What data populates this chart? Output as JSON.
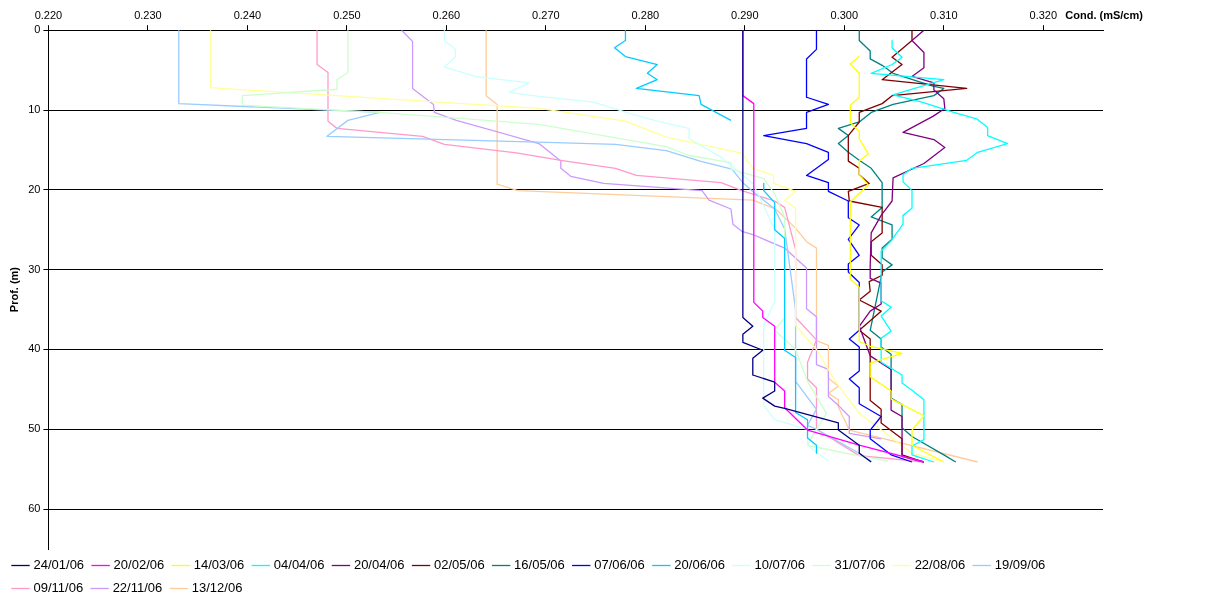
{
  "chart_data": {
    "type": "line",
    "xlabel": "Cond. (mS/cm)",
    "ylabel": "Prof. (m)",
    "xlim": [
      0.22,
      0.326
    ],
    "xticks": [
      {
        "value": 0.22,
        "label": "0.220"
      },
      {
        "value": 0.23,
        "label": "0.230"
      },
      {
        "value": 0.24,
        "label": "0.240"
      },
      {
        "value": 0.25,
        "label": "0.250"
      },
      {
        "value": 0.26,
        "label": "0.260"
      },
      {
        "value": 0.27,
        "label": "0.270"
      },
      {
        "value": 0.28,
        "label": "0.280"
      },
      {
        "value": 0.29,
        "label": "0.290"
      },
      {
        "value": 0.3,
        "label": "0.300"
      },
      {
        "value": 0.31,
        "label": "0.310"
      },
      {
        "value": 0.32,
        "label": "0.320"
      }
    ],
    "ylim": [
      65,
      0
    ],
    "yticks": [
      0,
      10,
      20,
      30,
      40,
      50,
      60
    ],
    "grid": "y",
    "legend": "bottom",
    "marker": "none",
    "line_style": "solid",
    "series": [
      {
        "name": "24/01/06",
        "color": "#000080",
        "x": [
          0.2898,
          0.2898,
          0.2908,
          0.2898,
          0.2898,
          0.2918,
          0.2908,
          0.2908,
          0.293,
          0.293,
          0.2918,
          0.293,
          0.2941,
          0.2994,
          0.2994,
          0.3015,
          0.3015,
          0.3027
        ],
        "values": [
          0,
          36,
          37.1,
          38.1,
          39.1,
          40.1,
          41.1,
          43.2,
          44.1,
          45.2,
          46.1,
          47.1,
          47.4,
          49.2,
          50.1,
          52,
          53,
          54.1
        ]
      },
      {
        "name": "20/02/06",
        "color": "#ff00ff",
        "x": [
          0.2898,
          0.2898,
          0.2909,
          0.2909,
          0.2918,
          0.2918,
          0.293,
          0.293,
          0.294,
          0.294,
          0.2963,
          0.3015,
          0.308
        ],
        "values": [
          0,
          8.2,
          9.2,
          34.1,
          35.2,
          36,
          37.1,
          44.1,
          45.2,
          47.3,
          50.1,
          52,
          54.1
        ]
      },
      {
        "name": "14/03/06",
        "color": "#ffff00",
        "x": [
          0.3015,
          0.3006,
          0.3015,
          0.3015,
          0.3006,
          0.3006,
          0.3015,
          0.3015,
          0.3024,
          0.3015,
          0.3015,
          0.3024,
          0.3006,
          0.3006,
          0.3015,
          0.3015,
          0.3026,
          0.3058,
          0.3026,
          0.3026,
          0.3047,
          0.3047,
          0.308,
          0.3068,
          0.3068,
          0.31
        ],
        "values": [
          3.3,
          4.2,
          5.4,
          8.4,
          9.4,
          11.6,
          12.7,
          13.6,
          15.5,
          16.4,
          18.1,
          19.4,
          21.5,
          31.2,
          32.2,
          39,
          39.6,
          40.5,
          41.7,
          43.4,
          45.2,
          46.2,
          48.3,
          50.1,
          52,
          54.1
        ]
      },
      {
        "name": "04/04/06",
        "color": "#00ffff",
        "x": [
          0.3048,
          0.3048,
          0.3058,
          0.3048,
          0.3027,
          0.31,
          0.3049,
          0.3078,
          0.311,
          0.3133,
          0.3144,
          0.3144,
          0.3164,
          0.3134,
          0.3123,
          0.3068,
          0.3059,
          0.3059,
          0.3068,
          0.3068,
          0.3059,
          0.3059,
          0.3047,
          0.3037,
          0.3037,
          0.3047,
          0.3037,
          0.3047,
          0.3037,
          0.3037,
          0.3058,
          0.3058,
          0.3068,
          0.308,
          0.308,
          0.3068,
          0.3068,
          0.309
        ],
        "values": [
          1.3,
          2.2,
          3.4,
          4.3,
          5.4,
          6.2,
          8.1,
          9,
          10.3,
          11.1,
          12.2,
          13.2,
          14.2,
          15.3,
          16.3,
          17.3,
          18.1,
          19,
          20.1,
          22.3,
          23.2,
          24.3,
          26.4,
          27.7,
          33.9,
          34.7,
          35.8,
          37.7,
          38.6,
          41.6,
          43.2,
          44.2,
          45.1,
          46.3,
          51.3,
          52.1,
          53.2,
          54.1
        ]
      },
      {
        "name": "20/04/06",
        "color": "#800080",
        "x": [
          0.308,
          0.3068,
          0.308,
          0.308,
          0.3068,
          0.309,
          0.309,
          0.31,
          0.3101,
          0.3089,
          0.3059,
          0.309,
          0.3101,
          0.308,
          0.3049,
          0.3048,
          0.3037,
          0.3027,
          0.3026,
          0.3026,
          0.3037,
          0.3037,
          0.3026,
          0.3015,
          0.3026,
          0.3047,
          0.3047,
          0.3058,
          0.3058,
          0.308
        ],
        "values": [
          0,
          1.3,
          2.8,
          4.7,
          5.8,
          6.6,
          7.5,
          8.6,
          9.8,
          10.8,
          12.8,
          13.7,
          14.7,
          16.7,
          18.5,
          21.4,
          23.2,
          25.4,
          29.5,
          31.1,
          31.7,
          34.3,
          35.2,
          37.1,
          40.8,
          42.5,
          47.6,
          48.4,
          53.4,
          54.1
        ]
      },
      {
        "name": "02/05/06",
        "color": "#800000",
        "x": [
          0.3068,
          0.3068,
          0.3048,
          0.3058,
          0.3038,
          0.3123,
          0.3048,
          0.3038,
          0.3015,
          0.3015,
          0.3004,
          0.3004,
          0.3015,
          0.3015,
          0.3025,
          0.3004,
          0.3005,
          0.3038,
          0.3038,
          0.3027,
          0.3027,
          0.3038,
          0.3038,
          0.3025,
          0.3026,
          0.3015,
          0.3037,
          0.3015,
          0.3026,
          0.3026,
          0.3037,
          0.3037,
          0.3058,
          0.3058,
          0.308
        ],
        "values": [
          0,
          1.3,
          3.4,
          4.3,
          6.2,
          7.3,
          8.2,
          9.2,
          10.3,
          11.5,
          13.2,
          16.4,
          17.3,
          18.1,
          19.2,
          20.2,
          21.4,
          22.2,
          25.4,
          26.5,
          28.2,
          29.4,
          30.7,
          31.5,
          32.7,
          33.8,
          35.2,
          37.6,
          38.7,
          46.4,
          47.5,
          49.2,
          51.2,
          53.2,
          54.1
        ]
      },
      {
        "name": "16/05/06",
        "color": "#008080",
        "x": [
          0.3015,
          0.3015,
          0.3026,
          0.3026,
          0.3038,
          0.3049,
          0.3089,
          0.31,
          0.309,
          0.3049,
          0.3027,
          0.3015,
          0.2994,
          0.3004,
          0.2994,
          0.3004,
          0.3015,
          0.3027,
          0.3038,
          0.3038,
          0.3027,
          0.3048,
          0.3048,
          0.3038,
          0.3038,
          0.3048,
          0.3038,
          0.3026,
          0.3037,
          0.3037,
          0.3047,
          0.3047,
          0.3058,
          0.3058,
          0.3068,
          0.31,
          0.3112
        ],
        "values": [
          0,
          1.3,
          2.6,
          3.6,
          4.4,
          5.4,
          7,
          7.3,
          8.2,
          9.3,
          10.3,
          11.5,
          12.3,
          13.2,
          14.2,
          15.3,
          16.3,
          17.3,
          19.1,
          22.2,
          23.4,
          24.4,
          26.2,
          27.3,
          28.5,
          29.4,
          30.3,
          37.6,
          38.7,
          39.7,
          40.6,
          46.1,
          46.9,
          49.8,
          50.9,
          53.2,
          54.1
        ]
      },
      {
        "name": "07/06/06",
        "color": "#0000ff",
        "x": [
          0.2972,
          0.2972,
          0.2962,
          0.2962,
          0.2984,
          0.2962,
          0.2962,
          0.2919,
          0.2962,
          0.2984,
          0.2984,
          0.2962,
          0.2984,
          0.2984,
          0.3004,
          0.3004,
          0.3015,
          0.3004,
          0.3015,
          0.3004,
          0.3004,
          0.3015,
          0.3015,
          0.3005,
          0.3015,
          0.3015,
          0.3005,
          0.3015,
          0.3015,
          0.3037,
          0.3026,
          0.3026,
          0.3047,
          0.3068
        ],
        "values": [
          0,
          2.4,
          3.6,
          8.4,
          9.3,
          10.3,
          12.3,
          13.2,
          14.2,
          15.3,
          16.2,
          18.2,
          19.1,
          20.2,
          21.4,
          23.5,
          24.4,
          26.2,
          28.2,
          29.3,
          30.3,
          31.6,
          37.6,
          38.7,
          39.7,
          42.7,
          43.7,
          44.8,
          46.8,
          48.4,
          50.1,
          51.2,
          53.2,
          54.1
        ]
      },
      {
        "name": "20/06/06",
        "color": "#00ccff",
        "x": [
          0.278,
          0.278,
          0.2769,
          0.278,
          0.2812,
          0.2802,
          0.2812,
          0.2791,
          0.2854,
          0.2856,
          0.2886,
          null,
          0.2919,
          0.2919,
          0.293,
          0.293,
          0.294,
          0.294,
          0.2951,
          0.2951,
          0.2963,
          0.2963,
          0.2972,
          0.2972
        ],
        "values": [
          0,
          1.3,
          2.2,
          3.3,
          4.3,
          5.4,
          6.2,
          7.3,
          8.2,
          9.3,
          11.3,
          null,
          19.2,
          20.1,
          21.6,
          25,
          26.1,
          40.1,
          41,
          47.9,
          48.8,
          51.1,
          52,
          53
        ]
      },
      {
        "name": "10/07/06",
        "color": "#ccffff",
        "x": [
          0.2598,
          0.2598,
          0.2609,
          0.2609,
          0.2598,
          0.2629,
          0.2683,
          0.2663,
          0.2693,
          0.2748,
          0.2789,
          0.2815,
          0.2844,
          0.2844,
          0.2876,
          0.2908,
          0.2919,
          0.293,
          0.293,
          0.2919,
          0.2919,
          0.293,
          0.2963,
          0.2963,
          0.2984
        ],
        "values": [
          0,
          1.3,
          2.4,
          3.4,
          4.6,
          5.8,
          6.6,
          7.8,
          8.3,
          9,
          10.6,
          11.5,
          12.3,
          13.6,
          15.9,
          19.2,
          22,
          25,
          34,
          37,
          47,
          48.8,
          50,
          52,
          54
        ]
      },
      {
        "name": "31/07/06",
        "color": "#ccffcc",
        "x": [
          0.2501,
          0.2501,
          0.249,
          0.249,
          0.2395,
          0.2395,
          0.2533,
          0.2693,
          0.2821,
          0.2844,
          0.2886,
          0.2886,
          0.2919,
          0.293,
          0.294,
          0.294,
          0.293,
          0.2951,
          0.2963,
          0.2982,
          0.2972,
          0.2963,
          0.3001,
          0.3044
        ],
        "values": [
          0,
          5.3,
          6.2,
          7.4,
          8.2,
          9.4,
          10.3,
          11.8,
          14.6,
          15.7,
          16.6,
          17.4,
          18.6,
          20.5,
          23.4,
          36,
          37.6,
          40,
          44,
          48,
          50,
          52,
          53,
          54
        ]
      },
      {
        "name": "22/08/06",
        "color": "#ffff99",
        "x": [
          0.2363,
          0.2363,
          0.2693,
          0.278,
          0.2821,
          0.2897,
          0.2908,
          0.2929,
          0.2929,
          0.2951,
          0.294,
          0.2951,
          0.2951,
          0.2972,
          0.2991,
          0.3015,
          0.3047,
          0.3068,
          0.3097
        ],
        "values": [
          0,
          7.2,
          9.8,
          11.4,
          13.4,
          15.4,
          17.3,
          18.2,
          19.2,
          20.2,
          21.3,
          22.3,
          37,
          40,
          44,
          48,
          51,
          53,
          54
        ]
      },
      {
        "name": "19/09/06",
        "color": "#99ccff",
        "x": [
          0.2331,
          0.2331,
          0.2533,
          0.2501,
          0.248,
          0.2684,
          0.277,
          0.2821,
          0.2855,
          0.2887,
          0.2898,
          0.2908,
          0.293,
          0.294,
          0.2951,
          0.2951,
          0.2972,
          0.2963,
          0.2972,
          0.3015,
          0.3027
        ],
        "values": [
          0,
          9.2,
          10.3,
          11.3,
          13.3,
          14,
          14.3,
          15.1,
          16.4,
          17.4,
          19.1,
          20.2,
          22.4,
          24.9,
          35,
          44,
          47.5,
          49.5,
          50,
          53,
          54
        ]
      },
      {
        "name": "09/11/06",
        "color": "#ff99cc",
        "x": [
          0.247,
          0.247,
          0.2481,
          0.2481,
          0.249,
          0.2576,
          0.2598,
          0.2672,
          0.2715,
          0.277,
          0.2791,
          0.2876,
          0.2897,
          0.293,
          0.294,
          0.2951,
          0.2951,
          0.2972,
          0.2963,
          0.2963,
          0.2972,
          0.2972,
          0.3015,
          0.308
        ],
        "values": [
          0,
          4.3,
          5.3,
          11.4,
          12.3,
          13.3,
          14.3,
          15.4,
          16.3,
          17.3,
          18.2,
          19.1,
          20.1,
          21.4,
          22.2,
          27.5,
          36,
          38.8,
          41.6,
          43.7,
          44.8,
          50,
          53.3,
          54.1
        ]
      },
      {
        "name": "22/11/06",
        "color": "#cc99ff",
        "x": [
          0.2555,
          0.2566,
          0.2566,
          0.2587,
          0.2588,
          0.261,
          0.2693,
          0.2715,
          0.2715,
          0.2725,
          0.2758,
          0.2857,
          0.2864,
          0.2886,
          0.2888,
          0.2897,
          0.2908,
          0.294,
          0.2962,
          0.2962,
          0.2972,
          0.2972,
          0.2984,
          0.2984,
          0.2994,
          0.3005,
          0.3005,
          0.3037
        ],
        "values": [
          0,
          1.4,
          7.3,
          9.3,
          10.3,
          11.3,
          14.2,
          16.4,
          17.3,
          18.3,
          19.2,
          20.1,
          21.3,
          22.4,
          24.3,
          25.2,
          25.6,
          27.3,
          29.8,
          34.9,
          35.9,
          41.9,
          42.5,
          45.9,
          47,
          48.4,
          50.5,
          51.2
        ]
      },
      {
        "name": "13/12/06",
        "color": "#ffcc99",
        "x": [
          0.264,
          0.264,
          0.2651,
          0.2651,
          0.2672,
          0.2908,
          0.2931,
          0.2951,
          0.2962,
          0.2972,
          0.2972,
          0.2984,
          0.2984,
          0.2994,
          0.2984,
          0.2994,
          0.2994,
          0.3005,
          0.3134
        ],
        "values": [
          0,
          8.2,
          9.3,
          19.3,
          20.1,
          21.3,
          22.4,
          24.8,
          26.5,
          27.3,
          38.9,
          39.5,
          43.6,
          44.6,
          45.5,
          46.3,
          47.2,
          50.1,
          54.1
        ]
      }
    ]
  }
}
